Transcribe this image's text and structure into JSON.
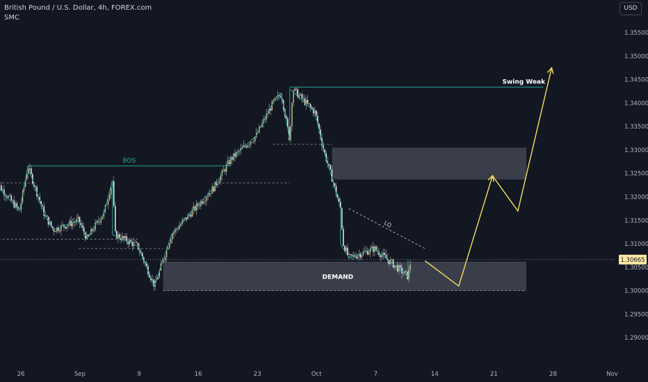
{
  "header": {
    "symbol_title": "British Pound / U.S. Dollar, 4h, FOREX.com",
    "indicator": "SMC",
    "currency": "USD"
  },
  "colors": {
    "background": "#131722",
    "up_candle": "#d1c48a",
    "down_candle": "#ffffff",
    "wick": "#b2b5be",
    "swing_line": "#26a69a",
    "projection": "#f6e05e",
    "zone_fill": "#7b7f8c",
    "axis_text": "#b2b5be",
    "price_label": "#ffe8a3"
  },
  "chart_data": {
    "type": "candlestick",
    "title": "British Pound / U.S. Dollar, 4h, FOREX.com",
    "ylabel": "USD",
    "ylim": [
      1.285,
      1.359
    ],
    "y_ticks": [
      "1.35500",
      "1.35000",
      "1.34500",
      "1.34000",
      "1.33500",
      "1.33000",
      "1.32500",
      "1.32000",
      "1.31500",
      "1.31000",
      "1.30500",
      "1.30000",
      "1.29500",
      "1.29000"
    ],
    "x_ticks": [
      "26",
      "Sep",
      "9",
      "16",
      "23",
      "Oct",
      "7",
      "14",
      "21",
      "28",
      "Nov"
    ],
    "current_price": "1.30665",
    "grid": false,
    "price_path": [
      {
        "date": "2024-08-23",
        "price": 1.309
      },
      {
        "date": "2024-08-23",
        "price": 1.323
      },
      {
        "date": "2024-08-26",
        "price": 1.317
      },
      {
        "date": "2024-08-27",
        "price": 1.3265
      },
      {
        "date": "2024-08-29",
        "price": 1.316
      },
      {
        "date": "2024-08-30",
        "price": 1.313
      },
      {
        "date": "2024-09-02",
        "price": 1.315
      },
      {
        "date": "2024-09-03",
        "price": 1.311
      },
      {
        "date": "2024-09-04",
        "price": 1.314
      },
      {
        "date": "2024-09-05",
        "price": 1.3165
      },
      {
        "date": "2024-09-06",
        "price": 1.3235
      },
      {
        "date": "2024-09-06",
        "price": 1.312
      },
      {
        "date": "2024-09-09",
        "price": 1.3095
      },
      {
        "date": "2024-09-11",
        "price": 1.301
      },
      {
        "date": "2024-09-13",
        "price": 1.312
      },
      {
        "date": "2024-09-16",
        "price": 1.318
      },
      {
        "date": "2024-09-18",
        "price": 1.322
      },
      {
        "date": "2024-09-20",
        "price": 1.328
      },
      {
        "date": "2024-09-23",
        "price": 1.333
      },
      {
        "date": "2024-09-25",
        "price": 1.34
      },
      {
        "date": "2024-09-26",
        "price": 1.342
      },
      {
        "date": "2024-09-27",
        "price": 1.332
      },
      {
        "date": "2024-09-27",
        "price": 1.343
      },
      {
        "date": "2024-09-30",
        "price": 1.338
      },
      {
        "date": "2024-10-01",
        "price": 1.33
      },
      {
        "date": "2024-10-02",
        "price": 1.324
      },
      {
        "date": "2024-10-03",
        "price": 1.3175
      },
      {
        "date": "2024-10-03",
        "price": 1.31
      },
      {
        "date": "2024-10-04",
        "price": 1.307
      },
      {
        "date": "2024-10-07",
        "price": 1.309
      },
      {
        "date": "2024-10-09",
        "price": 1.306
      },
      {
        "date": "2024-10-11",
        "price": 1.303
      },
      {
        "date": "2024-10-11",
        "price": 1.3065
      }
    ],
    "zones": [
      {
        "label": "DEMAND",
        "from": "2024-09-12",
        "to": "2024-10-25",
        "low": 1.3,
        "high": 1.3062
      },
      {
        "label": "",
        "from": "2024-10-02",
        "to": "2024-10-25",
        "low": 1.3237,
        "high": 1.3305
      }
    ],
    "levels": [
      {
        "label": "BOS",
        "from": "2024-08-27",
        "to": "2024-09-20",
        "price": 1.3266
      },
      {
        "label": "Swing Weak",
        "from": "2024-09-27",
        "to": "2024-10-27",
        "price": 1.3434
      },
      {
        "label": "",
        "from": "2024-09-25",
        "to": "2024-10-02",
        "price": 1.3312
      },
      {
        "label": "",
        "from": "2024-08-23",
        "to": "2024-09-09",
        "price": 1.311
      },
      {
        "label": "",
        "from": "2024-09-02",
        "to": "2024-09-12",
        "price": 1.309
      },
      {
        "label": "",
        "from": "2024-09-19",
        "to": "2024-09-27",
        "price": 1.323
      },
      {
        "label": "",
        "from": "2024-08-22",
        "to": "2024-08-28",
        "price": 1.323
      },
      {
        "label": "",
        "from": "2024-09-12",
        "to": "2024-10-25",
        "price": 1.3
      }
    ],
    "liquidity_line": {
      "label": "LQ",
      "from": {
        "date": "2024-10-04",
        "price": 1.3175
      },
      "to": {
        "date": "2024-10-13",
        "price": 1.309
      }
    },
    "projection": [
      {
        "date": "2024-10-13",
        "price": 1.3064
      },
      {
        "date": "2024-10-17",
        "price": 1.301
      },
      {
        "date": "2024-10-21",
        "price": 1.3245
      },
      {
        "date": "2024-10-24",
        "price": 1.317
      },
      {
        "date": "2024-10-28",
        "price": 1.3475
      }
    ]
  }
}
